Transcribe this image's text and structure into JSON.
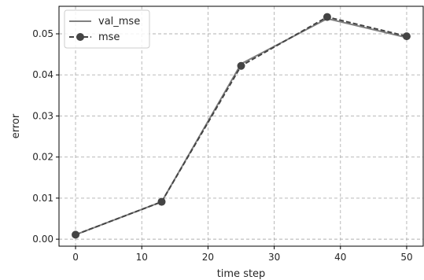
{
  "chart_data": {
    "type": "line",
    "xlabel": "time step",
    "ylabel": "error",
    "xlim": [
      -2.5,
      52.5
    ],
    "ylim": [
      -0.0017,
      0.0567
    ],
    "xticks": [
      0,
      10,
      20,
      30,
      40,
      50
    ],
    "yticks": [
      0.0,
      0.01,
      0.02,
      0.03,
      0.04,
      0.05
    ],
    "xtick_labels": [
      "0",
      "10",
      "20",
      "30",
      "40",
      "50"
    ],
    "ytick_labels": [
      "0.00",
      "0.01",
      "0.02",
      "0.03",
      "0.04",
      "0.05"
    ],
    "grid": true,
    "legend_position": "top-left",
    "series": [
      {
        "name": "val_mse",
        "style": "solid",
        "color": "#808080",
        "markers": false,
        "x": [
          0,
          13,
          25,
          38,
          50
        ],
        "y": [
          0.0011,
          0.0091,
          0.0427,
          0.0537,
          0.0491
        ]
      },
      {
        "name": "mse",
        "style": "dashed",
        "color": "#444444",
        "markers": true,
        "x": [
          0,
          13,
          25,
          38,
          50
        ],
        "y": [
          0.0011,
          0.0091,
          0.0422,
          0.0541,
          0.0494
        ]
      }
    ]
  }
}
